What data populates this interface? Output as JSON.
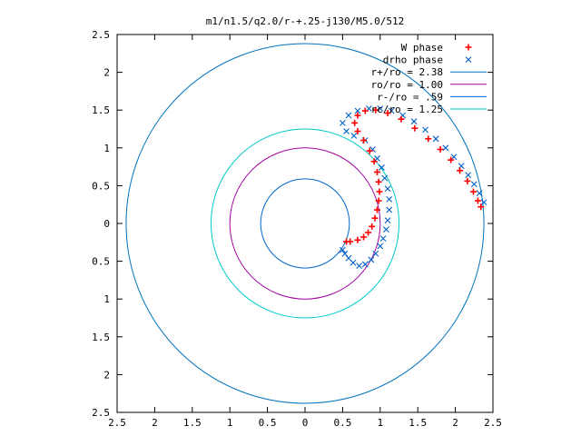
{
  "chart_data": {
    "type": "scatter",
    "title": "m1/n1.5/q2.0/r-+.25-j130/M5.0/512",
    "xlim": [
      -2.5,
      2.5
    ],
    "ylim": [
      -2.5,
      2.5
    ],
    "x_ticks": [
      "2.5",
      "2",
      "1.5",
      "1",
      "0.5",
      "0",
      "0.5",
      "1",
      "1.5",
      "2",
      "2.5"
    ],
    "y_ticks": [
      "2.5",
      "2",
      "1.5",
      "1",
      "0.5",
      "0",
      "0.5",
      "1",
      "1.5",
      "2",
      "2.5"
    ],
    "tick_values": [
      -2.5,
      -2,
      -1.5,
      -1,
      -0.5,
      0,
      0.5,
      1,
      1.5,
      2,
      2.5
    ],
    "grid": false,
    "legend_position": "top-right",
    "series": [
      {
        "name": "W phase",
        "kind": "points",
        "marker": "plus",
        "color": "#ff0000",
        "points": [
          [
            2.34,
            0.22
          ],
          [
            2.3,
            0.3
          ],
          [
            2.24,
            0.42
          ],
          [
            2.16,
            0.56
          ],
          [
            2.06,
            0.7
          ],
          [
            1.94,
            0.84
          ],
          [
            1.8,
            0.98
          ],
          [
            1.64,
            1.12
          ],
          [
            1.46,
            1.26
          ],
          [
            1.28,
            1.38
          ],
          [
            1.1,
            1.46
          ],
          [
            0.94,
            1.5
          ],
          [
            0.8,
            1.49
          ],
          [
            0.7,
            1.43
          ],
          [
            0.66,
            1.33
          ],
          [
            0.7,
            1.22
          ],
          [
            0.78,
            1.1
          ],
          [
            0.86,
            0.96
          ],
          [
            0.92,
            0.82
          ],
          [
            0.96,
            0.68
          ],
          [
            0.98,
            0.55
          ],
          [
            0.99,
            0.42
          ],
          [
            0.98,
            0.3
          ],
          [
            0.96,
            0.18
          ],
          [
            0.93,
            0.07
          ],
          [
            0.89,
            -0.04
          ],
          [
            0.84,
            -0.12
          ],
          [
            0.78,
            -0.18
          ],
          [
            0.7,
            -0.22
          ],
          [
            0.6,
            -0.24
          ],
          [
            0.55,
            -0.24
          ]
        ]
      },
      {
        "name": "drho phase",
        "kind": "points",
        "marker": "cross",
        "color": "#0060c8",
        "points": [
          [
            2.38,
            0.28
          ],
          [
            2.32,
            0.4
          ],
          [
            2.25,
            0.52
          ],
          [
            2.17,
            0.64
          ],
          [
            2.08,
            0.76
          ],
          [
            1.98,
            0.88
          ],
          [
            1.87,
            1.0
          ],
          [
            1.74,
            1.12
          ],
          [
            1.6,
            1.24
          ],
          [
            1.45,
            1.35
          ],
          [
            1.3,
            1.43
          ],
          [
            1.15,
            1.49
          ],
          [
            1.0,
            1.52
          ],
          [
            0.85,
            1.52
          ],
          [
            0.7,
            1.49
          ],
          [
            0.58,
            1.43
          ],
          [
            0.5,
            1.33
          ],
          [
            0.55,
            1.22
          ],
          [
            0.65,
            1.16
          ],
          [
            0.8,
            1.1
          ],
          [
            0.9,
            0.98
          ],
          [
            0.96,
            0.86
          ],
          [
            1.02,
            0.74
          ],
          [
            1.06,
            0.6
          ],
          [
            1.1,
            0.46
          ],
          [
            1.12,
            0.32
          ],
          [
            1.12,
            0.18
          ],
          [
            1.1,
            0.04
          ],
          [
            1.08,
            -0.08
          ],
          [
            1.04,
            -0.2
          ],
          [
            1.0,
            -0.3
          ],
          [
            0.94,
            -0.4
          ],
          [
            0.88,
            -0.48
          ],
          [
            0.8,
            -0.54
          ],
          [
            0.72,
            -0.56
          ],
          [
            0.64,
            -0.52
          ],
          [
            0.58,
            -0.46
          ],
          [
            0.53,
            -0.4
          ],
          [
            0.5,
            -0.35
          ]
        ]
      },
      {
        "name": "r+/ro = 2.38",
        "kind": "circle",
        "radius": 2.38,
        "color": "#0072bd"
      },
      {
        "name": "ro/ro = 1.00",
        "kind": "circle",
        "radius": 1.0,
        "color": "#a000a0"
      },
      {
        "name": "r-/ro = .59",
        "kind": "circle",
        "radius": 0.59,
        "color": "#0066cc"
      },
      {
        "name": "rc/ro = 1.25",
        "kind": "circle",
        "radius": 1.25,
        "color": "#00c8c8"
      }
    ]
  }
}
